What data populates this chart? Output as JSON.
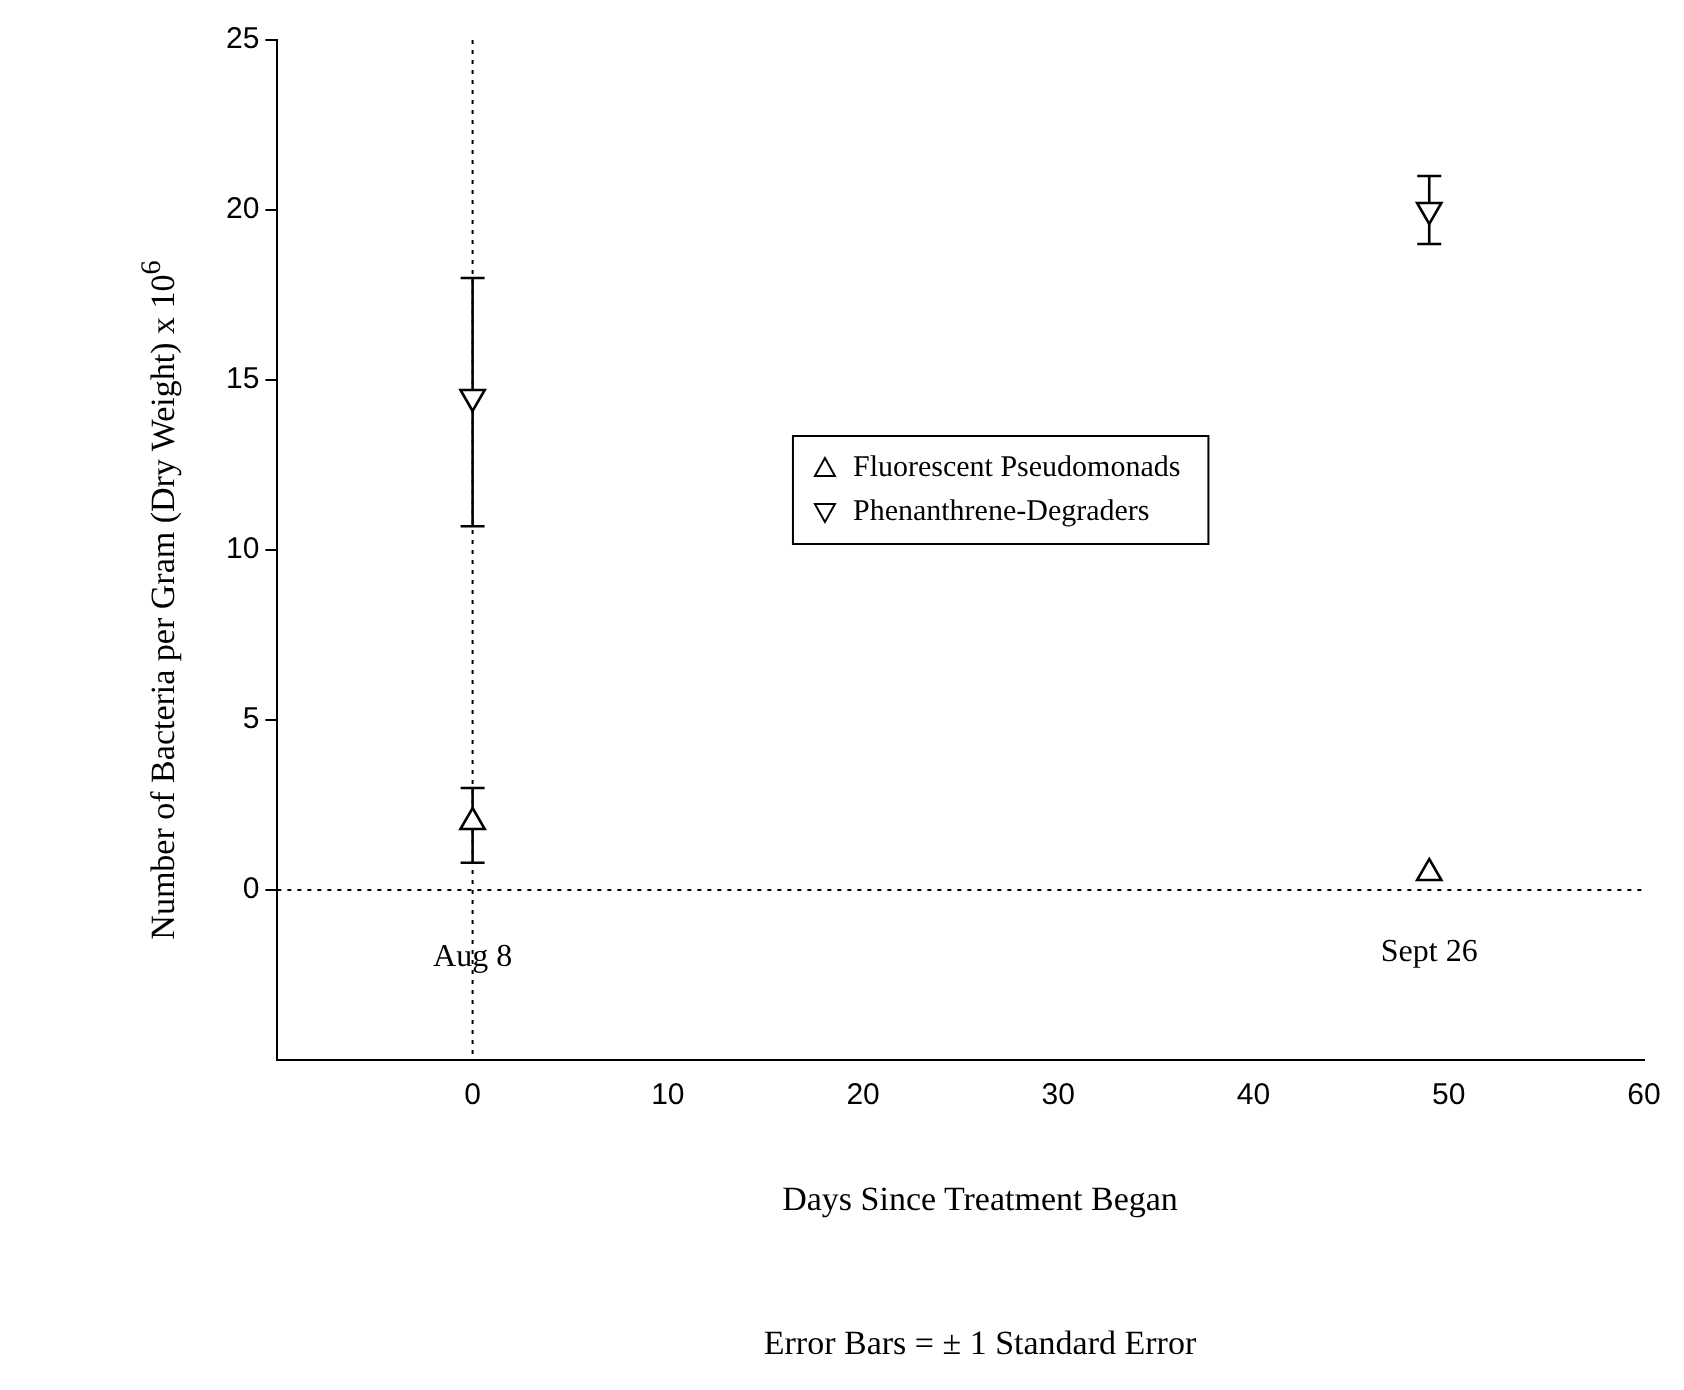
{
  "chart_data": {
    "type": "scatter",
    "xlabel": "Days Since Treatment Began",
    "ylabel": "Number of Bacteria per Gram (Dry Weight) x 10$^{6}$",
    "x": [
      0,
      49
    ],
    "xlim": [
      -10,
      60
    ],
    "xticks": [
      0,
      10,
      20,
      30,
      40,
      50,
      60
    ],
    "ylim": [
      -5,
      25
    ],
    "yticks": [
      0,
      5,
      10,
      15,
      20,
      25
    ],
    "series": [
      {
        "name": "Fluorescent Pseudomonads",
        "color": "#000000",
        "marker": "triangle",
        "values": [
          2,
          0.5
        ],
        "errors": [
          [
            0.8,
            3
          ],
          null
        ]
      },
      {
        "name": "Phenanthrene-Degraders",
        "color": "#000000",
        "marker": "triangle-down",
        "values": [
          14.5,
          20
        ],
        "errors": [
          [
            10.7,
            18
          ],
          [
            19,
            21
          ]
        ]
      }
    ],
    "ref_lines": [
      {
        "axis": "x",
        "value": 0,
        "label": "Aug 8",
        "line_style": "dotted"
      },
      {
        "axis": "y",
        "value": 0,
        "line_style": "dotted"
      }
    ],
    "annotations": [
      {
        "text": "Sept 26",
        "x": 49,
        "y": 0.5
      },
      "Error Bars = ± 1 Standard Error"
    ],
    "legend": "center",
    "grid": false
  }
}
